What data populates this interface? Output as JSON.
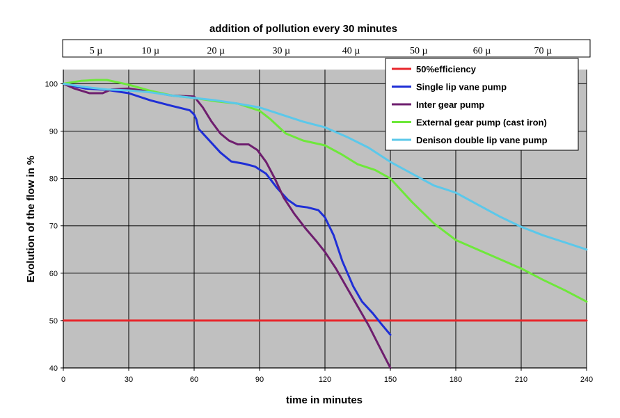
{
  "chart_data": {
    "type": "line",
    "top_title": "addition of pollution every 30 minutes",
    "pollution_band": [
      "5 µ",
      "10 µ",
      "20 µ",
      "30 µ",
      "40 µ",
      "50 µ",
      "60 µ",
      "70 µ"
    ],
    "pollution_band_x": [
      15,
      40,
      70,
      100,
      132,
      163,
      192,
      220
    ],
    "xlabel": "time in minutes",
    "ylabel": "Evolution of the flow in %",
    "xlim": [
      0,
      240
    ],
    "ylim": [
      40,
      103
    ],
    "xticks": [
      0,
      30,
      60,
      90,
      120,
      150,
      180,
      210,
      240
    ],
    "yticks": [
      40,
      50,
      60,
      70,
      80,
      90,
      100
    ],
    "grid": true,
    "legend_position": "top-right",
    "plot_background": "#c0c0c0",
    "series": [
      {
        "name": "50%efficiency",
        "color": "#e8262b",
        "points": [
          [
            0,
            50
          ],
          [
            240,
            50
          ]
        ]
      },
      {
        "name": "Single lip vane pump",
        "color": "#1f2fd6",
        "points": [
          [
            0,
            100
          ],
          [
            10,
            99
          ],
          [
            20,
            98.7
          ],
          [
            30,
            98
          ],
          [
            40,
            96.5
          ],
          [
            50,
            95.3
          ],
          [
            58,
            94.4
          ],
          [
            60,
            93.5
          ],
          [
            61,
            92.5
          ],
          [
            62,
            90.5
          ],
          [
            66,
            88.5
          ],
          [
            72,
            85.5
          ],
          [
            77,
            83.6
          ],
          [
            83,
            83.1
          ],
          [
            88,
            82.5
          ],
          [
            93,
            81
          ],
          [
            98,
            78
          ],
          [
            103,
            75.5
          ],
          [
            107,
            74.2
          ],
          [
            112,
            73.9
          ],
          [
            117,
            73.3
          ],
          [
            120,
            71.8
          ],
          [
            124,
            68
          ],
          [
            128,
            62.5
          ],
          [
            133,
            57.2
          ],
          [
            137,
            54
          ],
          [
            142,
            51.5
          ],
          [
            146,
            49.2
          ],
          [
            150,
            47
          ]
        ]
      },
      {
        "name": "Inter gear pump",
        "color": "#6e1e6e",
        "points": [
          [
            0,
            100
          ],
          [
            5,
            99
          ],
          [
            12,
            98
          ],
          [
            18,
            98
          ],
          [
            22,
            98.8
          ],
          [
            30,
            99
          ],
          [
            40,
            98.3
          ],
          [
            50,
            97.5
          ],
          [
            60,
            97.3
          ],
          [
            64,
            95
          ],
          [
            68,
            92
          ],
          [
            72,
            89.5
          ],
          [
            76,
            88
          ],
          [
            80,
            87.2
          ],
          [
            85,
            87.2
          ],
          [
            89,
            86
          ],
          [
            93,
            83.5
          ],
          [
            97,
            80
          ],
          [
            101,
            76
          ],
          [
            106,
            72.5
          ],
          [
            111,
            69.5
          ],
          [
            116,
            66.8
          ],
          [
            120,
            64.5
          ],
          [
            125,
            61
          ],
          [
            130,
            57
          ],
          [
            135,
            53
          ],
          [
            140,
            49
          ],
          [
            145,
            44.5
          ],
          [
            150,
            40
          ]
        ]
      },
      {
        "name": "External gear pump (cast iron)",
        "color": "#6ee83a",
        "points": [
          [
            0,
            100
          ],
          [
            8,
            100.6
          ],
          [
            15,
            100.8
          ],
          [
            20,
            100.8
          ],
          [
            30,
            99.8
          ],
          [
            40,
            98.5
          ],
          [
            50,
            97.5
          ],
          [
            60,
            97
          ],
          [
            70,
            96.3
          ],
          [
            80,
            95.8
          ],
          [
            90,
            94.3
          ],
          [
            95,
            92.5
          ],
          [
            102,
            89.5
          ],
          [
            110,
            88
          ],
          [
            120,
            87
          ],
          [
            128,
            85
          ],
          [
            135,
            83
          ],
          [
            143,
            81.8
          ],
          [
            150,
            80
          ],
          [
            160,
            75
          ],
          [
            170,
            70.5
          ],
          [
            180,
            67
          ],
          [
            190,
            65
          ],
          [
            200,
            63
          ],
          [
            210,
            61
          ],
          [
            220,
            58.6
          ],
          [
            230,
            56.4
          ],
          [
            240,
            54
          ]
        ]
      },
      {
        "name": "Denison double lip vane pump",
        "color": "#5bc8ea",
        "points": [
          [
            0,
            100
          ],
          [
            10,
            99.3
          ],
          [
            20,
            98.8
          ],
          [
            30,
            98.6
          ],
          [
            40,
            98.2
          ],
          [
            50,
            97.5
          ],
          [
            60,
            97
          ],
          [
            70,
            96.5
          ],
          [
            80,
            95.8
          ],
          [
            90,
            95
          ],
          [
            100,
            93.5
          ],
          [
            110,
            92
          ],
          [
            120,
            90.8
          ],
          [
            130,
            88.8
          ],
          [
            140,
            86.5
          ],
          [
            150,
            83.5
          ],
          [
            160,
            81
          ],
          [
            170,
            78.5
          ],
          [
            180,
            77
          ],
          [
            190,
            74.5
          ],
          [
            200,
            72
          ],
          [
            210,
            69.8
          ],
          [
            220,
            68
          ],
          [
            230,
            66.5
          ],
          [
            240,
            65
          ]
        ]
      }
    ]
  }
}
